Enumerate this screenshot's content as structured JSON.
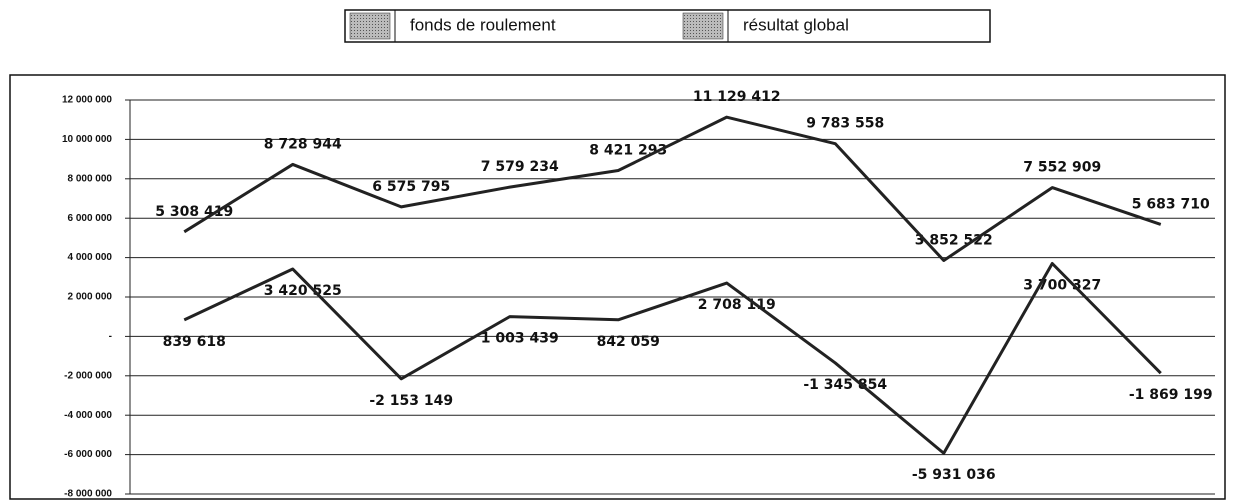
{
  "chart_data": {
    "type": "line",
    "categories": [
      null,
      null,
      null,
      null,
      null,
      null,
      null,
      null,
      null,
      null
    ],
    "series": [
      {
        "name": "fonds de roulement",
        "color": "#222222",
        "values": [
          5308419,
          8728944,
          6575795,
          7579234,
          8421293,
          11129412,
          9783558,
          3852522,
          7552909,
          5683710
        ],
        "value_labels": [
          "5 308 419",
          "8 728 944",
          "6 575 795",
          "7 579 234",
          "8 421 293",
          "11 129 412",
          "9 783 558",
          "3 852 522",
          "7 552 909",
          "5 683 710"
        ]
      },
      {
        "name": "résultat global",
        "color": "#222222",
        "values": [
          839618,
          3420525,
          -2153149,
          1003439,
          842059,
          2708119,
          -1345854,
          -5931036,
          3700327,
          -1869199
        ],
        "value_labels": [
          "839 618",
          "3 420 525",
          "-2 153 149",
          "1 003 439",
          "842 059",
          "2 708 119",
          "-1 345 854",
          "-5 931 036",
          "3 700 327",
          "-1 869 199"
        ]
      }
    ],
    "ylim": [
      -8000000,
      12000000
    ],
    "yticks": [
      {
        "value": 12000000,
        "label": "12 000 000"
      },
      {
        "value": 10000000,
        "label": "10 000 000"
      },
      {
        "value": 8000000,
        "label": "8 000 000"
      },
      {
        "value": 6000000,
        "label": "6 000 000"
      },
      {
        "value": 4000000,
        "label": "4 000 000"
      },
      {
        "value": 2000000,
        "label": "2 000 000"
      },
      {
        "value": 0,
        "label": "-"
      },
      {
        "value": -2000000,
        "label": "-2 000 000"
      },
      {
        "value": -4000000,
        "label": "-4 000 000"
      },
      {
        "value": -6000000,
        "label": "-6 000 000"
      },
      {
        "value": -8000000,
        "label": "-8 000 000"
      }
    ],
    "grid": true,
    "legend": "top"
  }
}
